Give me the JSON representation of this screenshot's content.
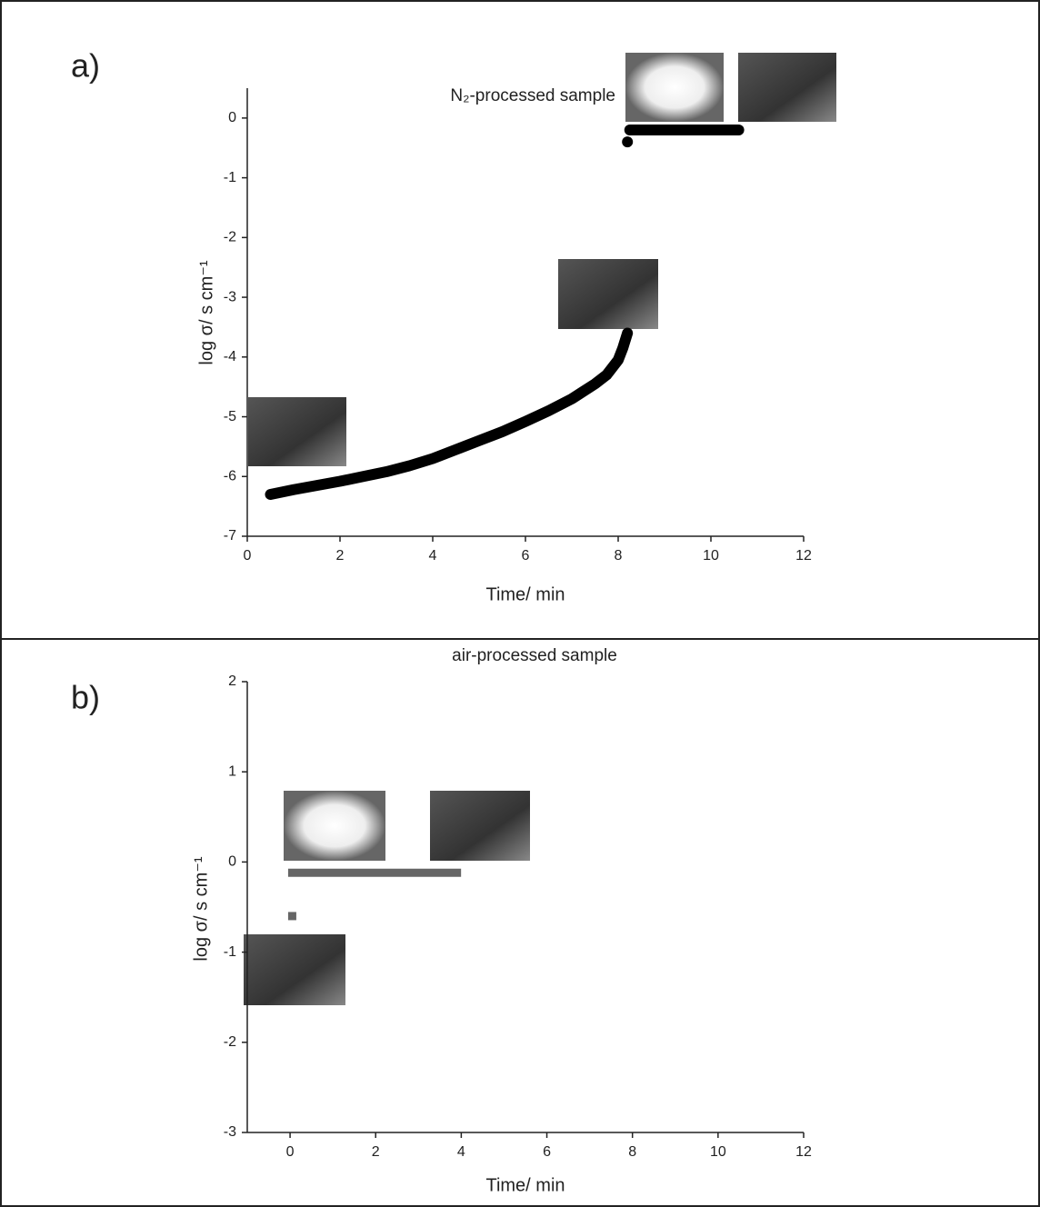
{
  "chart_data": [
    {
      "type": "line",
      "panel": "a)",
      "annotation": "N₂-processed sample",
      "xlabel": "Time/ min",
      "ylabel": "log σ/ s cm⁻¹",
      "xlim": [
        0,
        12
      ],
      "ylim": [
        -7,
        0.5
      ],
      "xticks": [
        0,
        2,
        4,
        6,
        8,
        10,
        12
      ],
      "yticks": [
        -7,
        -6,
        -5,
        -4,
        -3,
        -2,
        -1,
        0
      ],
      "series": [
        {
          "color": "#000000",
          "marker": "circle",
          "x": [
            0.5,
            1,
            1.5,
            2,
            2.5,
            3,
            3.5,
            4,
            4.5,
            5,
            5.5,
            6,
            6.5,
            7,
            7.5,
            7.75,
            8,
            8.1,
            8.2
          ],
          "values": [
            -6.3,
            -6.22,
            -6.15,
            -6.08,
            -6.0,
            -5.92,
            -5.82,
            -5.7,
            -5.55,
            -5.4,
            -5.25,
            -5.08,
            -4.9,
            -4.7,
            -4.45,
            -4.3,
            -4.05,
            -3.85,
            -3.6
          ]
        },
        {
          "color": "#000000",
          "marker": "circle",
          "x": [
            8.2
          ],
          "values": [
            -0.4
          ]
        },
        {
          "color": "#000000",
          "marker": "circle",
          "x": [
            8.25,
            10.6
          ],
          "values": [
            -0.2,
            -0.2
          ]
        }
      ]
    },
    {
      "type": "line",
      "panel": "b)",
      "annotation": "air-processed sample",
      "xlabel": "Time/ min",
      "ylabel": "log σ/ s cm⁻¹",
      "xlim": [
        -1,
        12
      ],
      "ylim": [
        -3,
        2
      ],
      "xticks": [
        0,
        2,
        4,
        6,
        8,
        10,
        12
      ],
      "yticks": [
        -3,
        -2,
        -1,
        0,
        1,
        2
      ],
      "series": [
        {
          "color": "#666666",
          "marker": "square",
          "x": [
            0.05
          ],
          "values": [
            -0.6
          ]
        },
        {
          "color": "#666666",
          "marker": "square",
          "x": [
            0.05,
            3.9
          ],
          "values": [
            -0.12,
            -0.12
          ]
        }
      ]
    }
  ]
}
